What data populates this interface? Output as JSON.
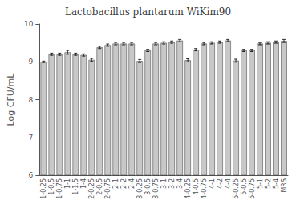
{
  "chart_data": {
    "type": "bar",
    "title": "Lactobacillus plantarum WiKim90",
    "ylabel": "Log CFU/mL",
    "categories": [
      "1-0.25",
      "1-0.5",
      "1-0.75",
      "1-1",
      "1-1.5",
      "1-4",
      "2-0.25",
      "2-0.5",
      "2-0.75",
      "2-1",
      "2-2",
      "2-4",
      "3-0.25",
      "3-0.5",
      "3-0.75",
      "3-1",
      "3-2",
      "3-4",
      "4-0.25",
      "4-0.5",
      "4-0.75",
      "4-1",
      "4-2",
      "4-4",
      "5-0.25",
      "5-0.5",
      "5-0.75",
      "5-1",
      "5-2",
      "5-4",
      "MRS"
    ],
    "values": [
      9.0,
      9.2,
      9.2,
      9.25,
      9.2,
      9.18,
      9.05,
      9.38,
      9.44,
      9.48,
      9.48,
      9.48,
      9.02,
      9.3,
      9.48,
      9.5,
      9.52,
      9.56,
      9.04,
      9.32,
      9.48,
      9.5,
      9.52,
      9.56,
      9.03,
      9.3,
      9.3,
      9.48,
      9.5,
      9.52,
      9.55
    ],
    "errors": [
      0.02,
      0.03,
      0.03,
      0.05,
      0.03,
      0.03,
      0.04,
      0.03,
      0.03,
      0.03,
      0.03,
      0.03,
      0.04,
      0.03,
      0.03,
      0.03,
      0.03,
      0.03,
      0.04,
      0.03,
      0.03,
      0.03,
      0.03,
      0.03,
      0.04,
      0.03,
      0.03,
      0.03,
      0.03,
      0.03,
      0.04
    ],
    "color": "#c8c8c8",
    "ylim": [
      6,
      10
    ],
    "yticks": [
      6,
      7,
      8,
      9,
      10
    ],
    "grid": false
  }
}
